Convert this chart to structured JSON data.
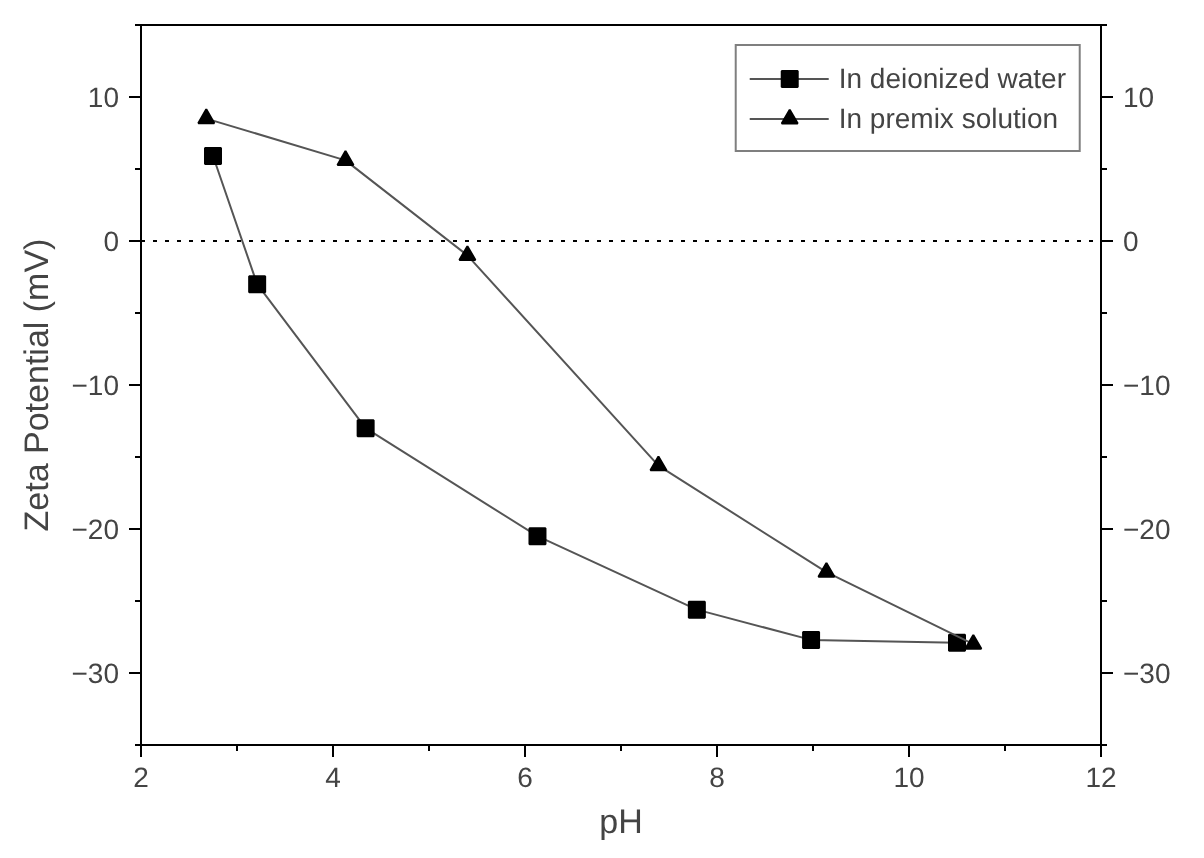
{
  "chart_data": {
    "type": "line",
    "xlabel": "pH",
    "ylabel": "Zeta Potential (mV)",
    "xlim": [
      2,
      12
    ],
    "ylim": [
      -35,
      15
    ],
    "y2lim": [
      -35,
      15
    ],
    "xticks": [
      2,
      {
        "value": 3,
        "label": null
      },
      4,
      {
        "value": 5,
        "label": null
      },
      6,
      {
        "value": 7,
        "label": null
      },
      8,
      {
        "value": 9,
        "label": null
      },
      10,
      {
        "value": 11,
        "label": null
      },
      12
    ],
    "yticks": [
      {
        "value": -35,
        "label": null
      },
      -30,
      {
        "value": -25,
        "label": null
      },
      -20,
      {
        "value": -15,
        "label": null
      },
      -10,
      {
        "value": -5,
        "label": null
      },
      0,
      {
        "value": 5,
        "label": null
      },
      10,
      {
        "value": 15,
        "label": null
      }
    ],
    "y2ticks": [
      {
        "value": -35,
        "label": null
      },
      -30,
      {
        "value": -25,
        "label": null
      },
      -20,
      {
        "value": -15,
        "label": null
      },
      -10,
      {
        "value": -5,
        "label": null
      },
      0,
      {
        "value": 5,
        "label": null
      },
      10,
      {
        "value": 15,
        "label": null
      }
    ],
    "series": [
      {
        "name": "In deionized water",
        "color": "#000000",
        "marker": "square",
        "x": [
          2.75,
          3.21,
          4.34,
          6.13,
          7.79,
          8.98,
          10.5
        ],
        "values": [
          5.9,
          -3.0,
          -13.0,
          -20.5,
          -25.6,
          -27.7,
          -27.9
        ]
      },
      {
        "name": "In premix solution",
        "color": "#000000",
        "marker": "triangle",
        "x": [
          2.68,
          4.13,
          5.4,
          7.39,
          9.14,
          10.67
        ],
        "values": [
          8.5,
          5.6,
          -1.0,
          -15.6,
          -23.0,
          -28.0
        ]
      }
    ],
    "ref_lines": [
      {
        "axis": "y",
        "value": 0,
        "label": null,
        "line_style": "dotted"
      }
    ],
    "grid": false,
    "legend": "top right",
    "line_style": "solid"
  }
}
